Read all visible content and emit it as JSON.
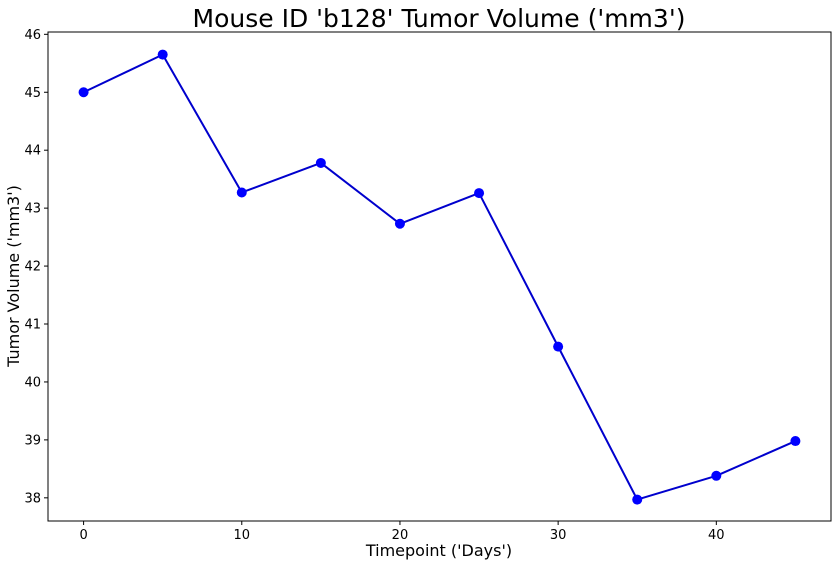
{
  "chart_data": {
    "type": "line",
    "title": "Mouse ID 'b128' Tumor Volume ('mm3')",
    "xlabel": "Timepoint ('Days')",
    "ylabel": "Tumor Volume ('mm3')",
    "xlim": [
      -2.25,
      47.25
    ],
    "ylim": [
      37.6,
      46.04
    ],
    "xticks": [
      0,
      10,
      20,
      30,
      40
    ],
    "yticks": [
      38,
      39,
      40,
      41,
      42,
      43,
      44,
      45,
      46
    ],
    "grid": false,
    "series": [
      {
        "x": [
          0,
          5,
          10,
          15,
          20,
          25,
          30,
          35,
          40,
          45
        ],
        "y": [
          45.0,
          45.65,
          43.27,
          43.78,
          42.73,
          43.26,
          40.61,
          37.97,
          38.38,
          38.98
        ],
        "color": "#0000ff",
        "line_color": "#0000cd",
        "marker": "circle"
      }
    ]
  }
}
